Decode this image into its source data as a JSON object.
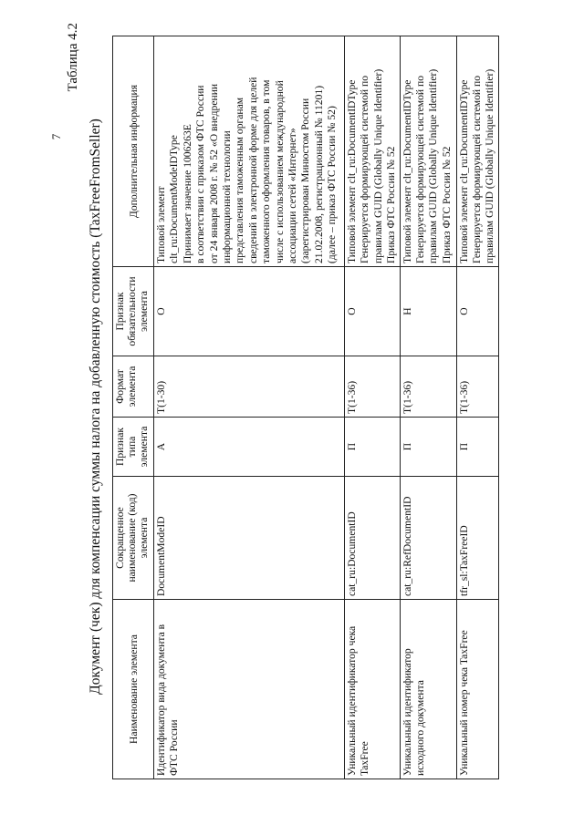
{
  "page_number": "7",
  "table_number": "Таблица 4.2",
  "title": "Документ (чек) для компенсации суммы налога на добавленную стоимость (TaxFreeFromSeller)",
  "columns": [
    "Наименование элемента",
    "Сокращенное наименование (код) элемента",
    "Признак типа элемента",
    "Формат элемента",
    "Признак обязательности элемента",
    "Дополнительная информация"
  ],
  "rows": [
    {
      "name": "Идентификатор вида документа в ФТС России",
      "code": "DocumentModeID",
      "type": "А",
      "format": "T(1-30)",
      "required": "О",
      "info": "Типовой элемент\nclt_ru:DocumentModeIDType\nПринимает значение 1006263E\nв соответствии с приказом ФТС России\nот 24 января 2008 г. № 52 «О внедрении\nинформационной технологии\nпредставления таможенным органам\nсведений в электронной форме для целей\nтаможенного оформления товаров, в том\nчисле с использованием международной\nассоциации сетей «Интернет»\n(зарегистрирован Минюстом России\n21.02.2008, регистрационный № 11201)\n(далее – приказ ФТС России № 52)"
    },
    {
      "name": "Уникальный идентификатор чека TaxFree",
      "code": "cat_ru:DocumentID",
      "type": "П",
      "format": "T(1-36)",
      "required": "О",
      "info": "Типовой элемент clt_ru:DocumentIDType\nГенерируется формирующей системой по\nправилам GUID (Globally Unique Identifier)\nПриказ ФТС России № 52"
    },
    {
      "name": "Уникальный идентификатор исходного документа",
      "code": "cat_ru:RefDocumentID",
      "type": "П",
      "format": "T(1-36)",
      "required": "Н",
      "info": "Типовой элемент clt_ru:DocumentIDType\nГенерируется формирующей системой по\nправилам GUID (Globally Unique Identifier)\nПриказ ФТС России № 52"
    },
    {
      "name": "Уникальный номер чека TaxFree",
      "code": "tfr_sl:TaxFreeID",
      "type": "П",
      "format": "T(1-36)",
      "required": "О",
      "info": "Типовой элемент clt_ru:DocumentIDType\nГенерируется формирующей системой по\nправилам GUID (Globally Unique Identifier)"
    }
  ]
}
